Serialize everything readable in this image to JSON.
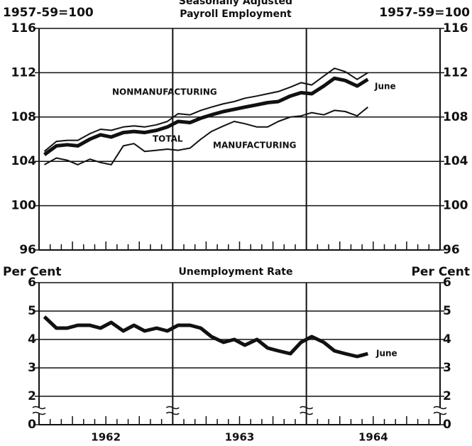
{
  "chart_data": [
    {
      "type": "line",
      "subtitle": "Seasonally Adjusted",
      "title": "Payroll Employment",
      "y_label_left": "1957-59=100",
      "y_label_right": "1957-59=100",
      "xlim": [
        1962,
        1965
      ],
      "xlines": [
        1963,
        1964
      ],
      "x": [
        1962.04,
        1962.13,
        1962.21,
        1962.29,
        1962.38,
        1962.46,
        1962.54,
        1962.63,
        1962.71,
        1962.79,
        1962.88,
        1962.96,
        1963.04,
        1963.13,
        1963.21,
        1963.29,
        1963.38,
        1963.46,
        1963.54,
        1963.63,
        1963.71,
        1963.79,
        1963.88,
        1963.96,
        1964.04,
        1964.13,
        1964.21,
        1964.29,
        1964.38,
        1964.46
      ],
      "ylim": [
        96,
        116
      ],
      "yticks": [
        96,
        100,
        104,
        108,
        112,
        116
      ],
      "grid": true,
      "series": [
        {
          "name": "NONMANUFACTURING",
          "color": "#111",
          "width": 2,
          "values": [
            104.9,
            105.8,
            105.9,
            105.9,
            106.5,
            106.9,
            106.8,
            107.1,
            107.2,
            107.1,
            107.3,
            107.6,
            108.3,
            108.2,
            108.6,
            108.9,
            109.2,
            109.4,
            109.7,
            109.9,
            110.1,
            110.3,
            110.7,
            111.1,
            110.9,
            111.7,
            112.4,
            112.1,
            111.4,
            112.0
          ]
        },
        {
          "name": "TOTAL",
          "color": "#111",
          "width": 5,
          "values": [
            104.6,
            105.4,
            105.5,
            105.4,
            106.0,
            106.4,
            106.2,
            106.6,
            106.7,
            106.6,
            106.8,
            107.1,
            107.6,
            107.5,
            107.9,
            108.2,
            108.5,
            108.7,
            108.9,
            109.1,
            109.3,
            109.4,
            109.9,
            110.2,
            110.1,
            110.8,
            111.5,
            111.3,
            110.8,
            111.4
          ]
        },
        {
          "name": "MANUFACTURING",
          "color": "#111",
          "width": 2,
          "values": [
            103.7,
            104.3,
            104.1,
            103.7,
            104.2,
            103.9,
            103.7,
            105.4,
            105.6,
            104.9,
            105.0,
            105.1,
            105.0,
            105.2,
            106.0,
            106.7,
            107.2,
            107.6,
            107.4,
            107.1,
            107.1,
            107.6,
            108.0,
            108.1,
            108.4,
            108.2,
            108.6,
            108.5,
            108.1,
            108.9
          ]
        }
      ],
      "annotation": "June"
    },
    {
      "type": "line",
      "title": "Unemployment Rate",
      "y_label_left": "Per Cent",
      "y_label_right": "Per Cent",
      "xlim": [
        1962,
        1965
      ],
      "xlines": [
        1963,
        1964
      ],
      "xticks": [
        {
          "value": 1962.5,
          "label": "1962"
        },
        {
          "value": 1963.5,
          "label": "1963"
        },
        {
          "value": 1964.5,
          "label": "1964"
        }
      ],
      "x": [
        1962.04,
        1962.13,
        1962.21,
        1962.29,
        1962.38,
        1962.46,
        1962.54,
        1962.63,
        1962.71,
        1962.79,
        1962.88,
        1962.96,
        1963.04,
        1963.13,
        1963.21,
        1963.29,
        1963.38,
        1963.46,
        1963.54,
        1963.63,
        1963.71,
        1963.79,
        1963.88,
        1963.96,
        1964.04,
        1964.13,
        1964.21,
        1964.29,
        1964.38,
        1964.46
      ],
      "ylim": [
        0,
        6
      ],
      "ybreak": [
        0,
        2
      ],
      "yticks": [
        0,
        2,
        3,
        4,
        5,
        6
      ],
      "grid": true,
      "series": [
        {
          "name": "Unemployment Rate",
          "color": "#111",
          "width": 5,
          "values": [
            4.8,
            4.4,
            4.4,
            4.5,
            4.5,
            4.4,
            4.6,
            4.3,
            4.5,
            4.3,
            4.4,
            4.3,
            4.5,
            4.5,
            4.4,
            4.1,
            3.9,
            4.0,
            3.8,
            4.0,
            3.7,
            3.6,
            3.5,
            3.9,
            4.1,
            3.9,
            3.6,
            3.5,
            3.4,
            3.5
          ]
        }
      ],
      "annotation": "June"
    }
  ]
}
